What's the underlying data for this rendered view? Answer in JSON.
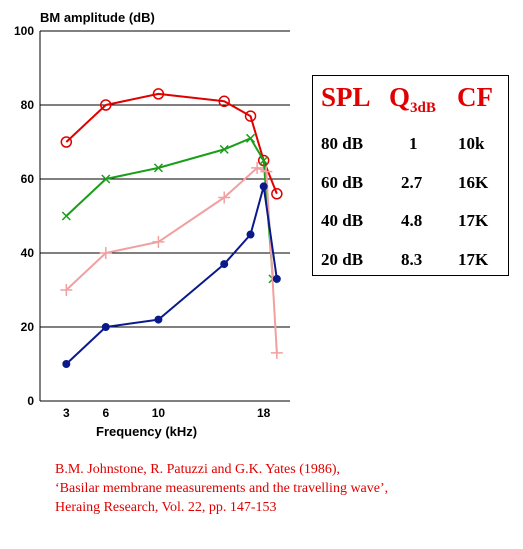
{
  "chart_data": {
    "type": "line",
    "ylabel": "BM amplitude (dB)",
    "xlabel": "Frequency (kHz)",
    "ylim": [
      0,
      100
    ],
    "yticks": [
      0,
      20,
      40,
      60,
      80,
      100
    ],
    "xticks": [
      3,
      6,
      10,
      18
    ],
    "grid": "horizontal",
    "series": [
      {
        "color": "#e00000",
        "marker": "circle",
        "x": [
          3,
          6,
          10,
          15,
          17,
          18,
          19
        ],
        "y": [
          70,
          80,
          83,
          81,
          77,
          65,
          56
        ]
      },
      {
        "color": "#1a9e1a",
        "marker": "x",
        "x": [
          3,
          6,
          10,
          15,
          17,
          18,
          18.7
        ],
        "y": [
          50,
          60,
          63,
          68,
          71,
          65,
          33
        ]
      },
      {
        "color": "#f0a0a0",
        "marker": "plus",
        "x": [
          3,
          6,
          10,
          15,
          17.5,
          18.2,
          19
        ],
        "y": [
          30,
          40,
          43,
          55,
          63,
          62,
          13
        ]
      },
      {
        "color": "#0a1a8a",
        "marker": "dot",
        "x": [
          3,
          6,
          10,
          15,
          17,
          18,
          19
        ],
        "y": [
          10,
          20,
          22,
          37,
          45,
          58,
          33
        ]
      }
    ]
  },
  "table": {
    "headers": {
      "spl": "SPL",
      "q": "Q",
      "q_sub": "3dB",
      "cf": "CF"
    },
    "rows": [
      {
        "spl": "80 dB",
        "q": "1",
        "cf": "10k"
      },
      {
        "spl": "60 dB",
        "q": "2.7",
        "cf": "16K"
      },
      {
        "spl": "40 dB",
        "q": "4.8",
        "cf": "17K"
      },
      {
        "spl": "20 dB",
        "q": "8.3",
        "cf": "17K"
      }
    ]
  },
  "citation": {
    "line1": "B.M. Johnstone, R. Patuzzi and G.K. Yates (1986),",
    "line2": "‘Basilar membrane measurements and the travelling wave’,",
    "line3": "Heraing Research, Vol. 22, pp. 147-153"
  }
}
